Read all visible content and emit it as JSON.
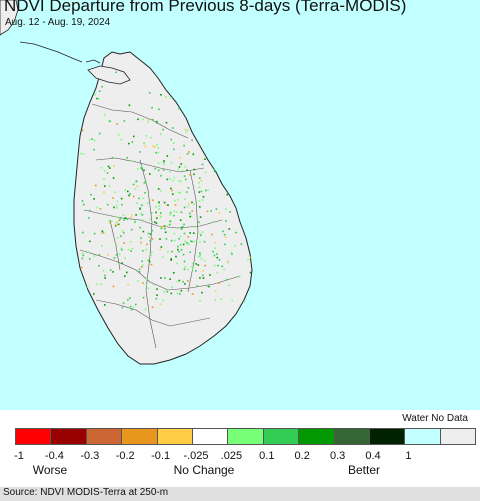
{
  "title": "NDVI Departure from Previous 8-days (Terra-MODIS)",
  "date_range": "Aug. 12 - Aug. 19, 2024",
  "legend": {
    "water_no_data_label": "Water No Data",
    "ticks": [
      "-1",
      "-0.4",
      "-0.3",
      "-0.2",
      "-0.1",
      "-.025",
      ".025",
      "0.1",
      "0.2",
      "0.3",
      "0.4",
      "1"
    ],
    "colors": [
      "#ff0000",
      "#990000",
      "#cc6633",
      "#e8961e",
      "#ffcc44",
      "#ffffff",
      "#77ff77",
      "#33cc55",
      "#009900",
      "#336633",
      "#002200",
      "#c2ffff",
      "#eeeeee"
    ],
    "worse_label": "Worse",
    "no_change_label": "No Change",
    "better_label": "Better"
  },
  "map": {
    "land_color": "#eeeeee",
    "water_color": "#c2ffff"
  },
  "source": "Source: NDVI MODIS-Terra at 250-m"
}
